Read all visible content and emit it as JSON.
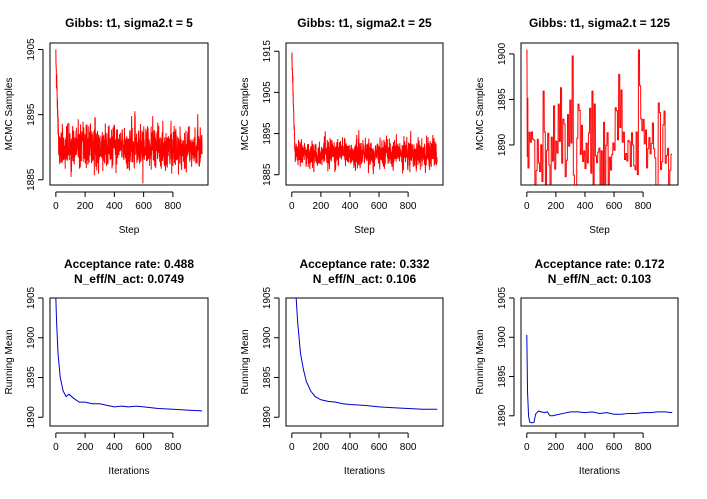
{
  "chart_data": [
    {
      "type": "line",
      "title_lines": [
        "Gibbs: t1, sigma2.t = 5"
      ],
      "xlabel": "Step",
      "ylabel": "MCMC Samples",
      "xlim": [
        -40,
        1040
      ],
      "ylim": [
        1884.2,
        1906
      ],
      "xticks": [
        0,
        200,
        400,
        600,
        800
      ],
      "yticks": [
        1885,
        1895,
        1905
      ],
      "series": [
        {
          "color": "#ff0000",
          "style": "trace",
          "start": 1905,
          "level": 1890,
          "sd": 1.6,
          "burn": 25,
          "seed": 11,
          "hold": 1
        }
      ],
      "n": 1000
    },
    {
      "type": "line",
      "title_lines": [
        "Gibbs: t1, sigma2.t = 25"
      ],
      "xlabel": "Step",
      "ylabel": "MCMC Samples",
      "xlim": [
        -40,
        1040
      ],
      "ylim": [
        1882.5,
        1917
      ],
      "xticks": [
        0,
        200,
        400,
        600,
        800
      ],
      "yticks": [
        1885,
        1895,
        1905,
        1915
      ],
      "series": [
        {
          "color": "#ff0000",
          "style": "trace",
          "start": 1913,
          "level": 1890,
          "sd": 1.7,
          "burn": 30,
          "seed": 23,
          "hold": 1
        }
      ],
      "n": 1000
    },
    {
      "type": "line",
      "title_lines": [
        "Gibbs: t1, sigma2.t = 125"
      ],
      "xlabel": "Step",
      "ylabel": "MCMC Samples",
      "xlim": [
        -40,
        1040
      ],
      "ylim": [
        1885.6,
        1901.2
      ],
      "xticks": [
        0,
        200,
        400,
        600,
        800
      ],
      "yticks": [
        1890,
        1895,
        1900
      ],
      "series": [
        {
          "color": "#ff0000",
          "style": "trace",
          "start": 1900,
          "level": 1890.5,
          "sd": 3.2,
          "burn": 5,
          "seed": 37,
          "hold": 8
        }
      ],
      "n": 1000
    },
    {
      "type": "line",
      "title_lines": [
        "Acceptance rate: 0.488",
        "N_eff/N_act: 0.0749"
      ],
      "xlabel": "Iterations",
      "ylabel": "Running Mean",
      "xlim": [
        -40,
        1040
      ],
      "ylim": [
        1888.9,
        1905
      ],
      "xticks": [
        0,
        200,
        400,
        600,
        800
      ],
      "yticks": [
        1890,
        1895,
        1900,
        1905
      ],
      "series": [
        {
          "color": "#0000cc",
          "style": "curve",
          "points": [
            [
              0,
              1905
            ],
            [
              5,
              1902
            ],
            [
              15,
              1898
            ],
            [
              30,
              1895
            ],
            [
              50,
              1893.3
            ],
            [
              70,
              1892.6
            ],
            [
              90,
              1892.9
            ],
            [
              120,
              1892.4
            ],
            [
              160,
              1891.9
            ],
            [
              200,
              1891.9
            ],
            [
              250,
              1891.7
            ],
            [
              300,
              1891.7
            ],
            [
              350,
              1891.5
            ],
            [
              400,
              1891.3
            ],
            [
              450,
              1891.4
            ],
            [
              500,
              1891.3
            ],
            [
              550,
              1891.4
            ],
            [
              600,
              1891.3
            ],
            [
              700,
              1891.1
            ],
            [
              800,
              1891.0
            ],
            [
              900,
              1890.9
            ],
            [
              1000,
              1890.8
            ]
          ]
        }
      ]
    },
    {
      "type": "line",
      "title_lines": [
        "Acceptance rate: 0.332",
        "N_eff/N_act: 0.106"
      ],
      "xlabel": "Iterations",
      "ylabel": "Running Mean",
      "xlim": [
        -40,
        1040
      ],
      "ylim": [
        1888.9,
        1905
      ],
      "xticks": [
        0,
        200,
        400,
        600,
        800
      ],
      "yticks": [
        1890,
        1895,
        1900,
        1905
      ],
      "series": [
        {
          "color": "#0000cc",
          "style": "curve",
          "points": [
            [
              30,
              1905
            ],
            [
              40,
              1902
            ],
            [
              60,
              1898
            ],
            [
              80,
              1896
            ],
            [
              100,
              1894.5
            ],
            [
              130,
              1893.3
            ],
            [
              160,
              1892.6
            ],
            [
              200,
              1892.2
            ],
            [
              250,
              1892.0
            ],
            [
              300,
              1891.9
            ],
            [
              350,
              1891.7
            ],
            [
              400,
              1891.6
            ],
            [
              500,
              1891.5
            ],
            [
              600,
              1891.3
            ],
            [
              700,
              1891.2
            ],
            [
              800,
              1891.1
            ],
            [
              900,
              1891.0
            ],
            [
              1000,
              1891.0
            ]
          ]
        }
      ]
    },
    {
      "type": "line",
      "title_lines": [
        "Acceptance rate: 0.172",
        "N_eff/N_act: 0.103"
      ],
      "xlabel": "Iterations",
      "ylabel": "Running Mean",
      "xlim": [
        -40,
        1040
      ],
      "ylim": [
        1888.7,
        1905
      ],
      "xticks": [
        0,
        200,
        400,
        600,
        800
      ],
      "yticks": [
        1890,
        1895,
        1900,
        1905
      ],
      "series": [
        {
          "color": "#0000cc",
          "style": "curve",
          "points": [
            [
              0,
              1900.3
            ],
            [
              5,
              1893
            ],
            [
              12,
              1890
            ],
            [
              20,
              1889.2
            ],
            [
              35,
              1889.1
            ],
            [
              50,
              1889.2
            ],
            [
              60,
              1890.2
            ],
            [
              80,
              1890.6
            ],
            [
              100,
              1890.5
            ],
            [
              120,
              1890.4
            ],
            [
              140,
              1890.5
            ],
            [
              160,
              1890.0
            ],
            [
              180,
              1890.0
            ],
            [
              200,
              1890.1
            ],
            [
              250,
              1890.3
            ],
            [
              300,
              1890.5
            ],
            [
              350,
              1890.5
            ],
            [
              400,
              1890.4
            ],
            [
              450,
              1890.5
            ],
            [
              500,
              1890.3
            ],
            [
              550,
              1890.4
            ],
            [
              600,
              1890.2
            ],
            [
              650,
              1890.2
            ],
            [
              700,
              1890.3
            ],
            [
              750,
              1890.3
            ],
            [
              800,
              1890.4
            ],
            [
              850,
              1890.4
            ],
            [
              900,
              1890.5
            ],
            [
              950,
              1890.5
            ],
            [
              1000,
              1890.4
            ]
          ]
        }
      ]
    }
  ]
}
